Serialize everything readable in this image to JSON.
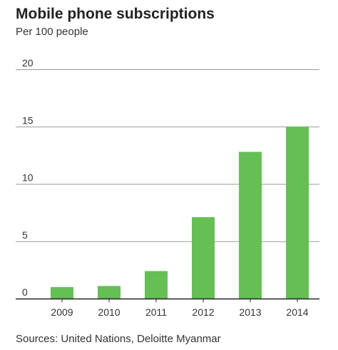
{
  "title": "Mobile phone subscriptions",
  "subtitle": "Per 100 people",
  "source": "Sources: United Nations, Deloitte Myanmar",
  "colors": {
    "bar": "#66bf55",
    "gridline": "#999999",
    "baseline": "#222222"
  },
  "chart_data": {
    "type": "bar",
    "categories": [
      "2009",
      "2010",
      "2011",
      "2012",
      "2013",
      "2014"
    ],
    "values": [
      1.0,
      1.1,
      2.4,
      7.1,
      12.8,
      15.0
    ],
    "yticks": [
      "0",
      "5",
      "10",
      "15",
      "20"
    ],
    "ylim": [
      0,
      20
    ],
    "grid": true,
    "legend": "none"
  }
}
